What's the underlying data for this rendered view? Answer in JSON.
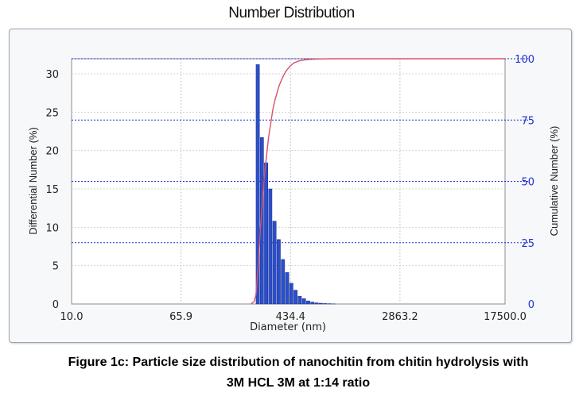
{
  "chart_data": {
    "type": "bar",
    "title": "Number Distribution",
    "xlabel": "Diameter (nm)",
    "ylabel": "Differential Number (%)",
    "y2label": "Cumulative Number (%)",
    "x_scale": "log",
    "xlim": [
      10.0,
      17500.0
    ],
    "ylim": [
      0,
      32
    ],
    "y2lim": [
      0,
      100
    ],
    "x_ticks": [
      "10.0",
      "65.9",
      "434.4",
      "2863.2",
      "17500.0"
    ],
    "x_tick_values": [
      10.0,
      65.9,
      434.4,
      2863.2,
      17500.0
    ],
    "y_ticks": [
      0,
      5,
      10,
      15,
      20,
      25,
      30
    ],
    "y2_ticks": [
      0,
      25,
      50,
      75,
      100
    ],
    "grid": true,
    "colors": {
      "bars": "#2b4fc9",
      "cumulative": "#d9506b",
      "right_axis": "#1f2fd6"
    },
    "series": [
      {
        "kind": "bar",
        "x": [
          240,
          258,
          277,
          298,
          320,
          344,
          370,
          398,
          428,
          460,
          495,
          532,
          572,
          615,
          661,
          711,
          764,
          821,
          883
        ],
        "values": [
          31.2,
          21.7,
          18.4,
          15.0,
          10.8,
          8.4,
          5.8,
          4.1,
          2.7,
          1.8,
          1.0,
          0.7,
          0.4,
          0.25,
          0.15,
          0.1,
          0.06,
          0.04,
          0.02
        ]
      },
      {
        "kind": "line",
        "axis": "right",
        "x": [
          220,
          232,
          240,
          250,
          258,
          268,
          277,
          288,
          298,
          310,
          320,
          332,
          344,
          357,
          370,
          384,
          398,
          413,
          428,
          444,
          460,
          495,
          532,
          572,
          615,
          711,
          883,
          1200,
          5000,
          17500
        ],
        "values": [
          0,
          1,
          4,
          17,
          30,
          42,
          52,
          61,
          68,
          74,
          79,
          83,
          86,
          89,
          91,
          93,
          94.6,
          95.8,
          96.8,
          97.6,
          98.3,
          99.0,
          99.4,
          99.6,
          99.75,
          99.9,
          100,
          100,
          100,
          100
        ]
      }
    ]
  },
  "caption": {
    "line1": "Figure 1c: Particle size distribution of nanochitin from chitin hydrolysis with",
    "line2": "3M HCL 3M at 1:14 ratio"
  }
}
